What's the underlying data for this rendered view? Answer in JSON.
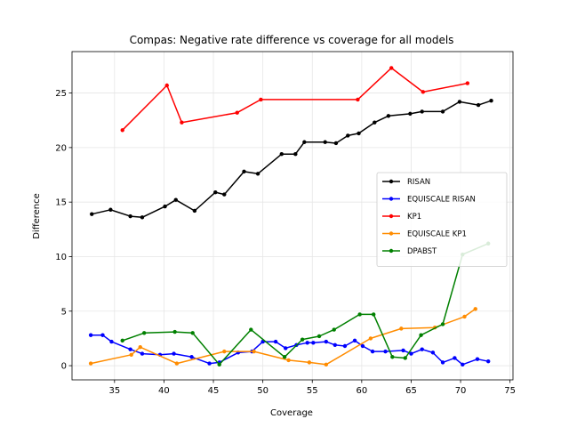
{
  "chart_data": {
    "type": "line",
    "title": "Compas: Negative rate difference vs coverage for all models",
    "xlabel": "Coverage",
    "ylabel": "Difference",
    "xlim": [
      30.7,
      75.3
    ],
    "ylim": [
      -1.3,
      28.8
    ],
    "xticks": [
      35,
      40,
      45,
      50,
      55,
      60,
      65,
      70,
      75
    ],
    "yticks": [
      0,
      5,
      10,
      15,
      20,
      25
    ],
    "grid": true,
    "legend_position": "center-right",
    "series": [
      {
        "name": "RISAN",
        "color": "#000000",
        "x": [
          32.7,
          34.6,
          36.6,
          37.8,
          40.1,
          41.2,
          43.1,
          45.2,
          46.1,
          48.1,
          49.5,
          51.9,
          53.3,
          54.2,
          56.3,
          57.4,
          58.6,
          59.7,
          61.3,
          62.7,
          64.9,
          66.1,
          68.2,
          69.9,
          71.8,
          73.1
        ],
        "y": [
          13.9,
          14.3,
          13.7,
          13.6,
          14.6,
          15.2,
          14.2,
          15.9,
          15.7,
          17.8,
          17.6,
          19.4,
          19.4,
          20.5,
          20.5,
          20.4,
          21.1,
          21.3,
          22.3,
          22.9,
          23.1,
          23.3,
          23.3,
          24.2,
          23.9,
          24.3
        ]
      },
      {
        "name": "EQUISCALE RISAN",
        "color": "#0000ff",
        "x": [
          32.6,
          33.8,
          34.7,
          36.6,
          37.8,
          39.6,
          41.0,
          42.8,
          44.6,
          45.6,
          47.5,
          48.9,
          50.0,
          51.3,
          52.3,
          53.4,
          54.5,
          55.1,
          56.4,
          57.3,
          58.3,
          59.3,
          60.1,
          61.1,
          62.4,
          64.2,
          65.0,
          66.1,
          67.2,
          68.2,
          69.4,
          70.2,
          71.7,
          72.8
        ],
        "y": [
          2.8,
          2.8,
          2.2,
          1.5,
          1.1,
          1.0,
          1.1,
          0.8,
          0.2,
          0.3,
          1.2,
          1.3,
          2.2,
          2.2,
          1.6,
          1.9,
          2.1,
          2.1,
          2.2,
          1.9,
          1.8,
          2.3,
          1.8,
          1.3,
          1.3,
          1.4,
          1.1,
          1.5,
          1.2,
          0.3,
          0.7,
          0.1,
          0.6,
          0.4
        ]
      },
      {
        "name": "KP1",
        "color": "#ff0000",
        "x": [
          35.8,
          40.3,
          41.8,
          47.4,
          49.8,
          59.6,
          63.0,
          66.2,
          70.7
        ],
        "y": [
          21.6,
          25.7,
          22.3,
          23.2,
          24.4,
          24.4,
          27.3,
          25.1,
          25.9
        ]
      },
      {
        "name": "EQUISCALE KP1",
        "color": "#ff8c00",
        "x": [
          32.6,
          36.7,
          37.6,
          41.3,
          46.1,
          49.1,
          52.6,
          54.7,
          56.4,
          60.9,
          64.0,
          67.4,
          70.4,
          71.5
        ],
        "y": [
          0.2,
          1.0,
          1.7,
          0.2,
          1.3,
          1.3,
          0.5,
          0.3,
          0.1,
          2.5,
          3.4,
          3.5,
          4.5,
          5.2
        ]
      },
      {
        "name": "DPABST",
        "color": "#008000",
        "x": [
          35.8,
          38.0,
          41.1,
          42.9,
          45.6,
          48.8,
          52.2,
          54.0,
          55.7,
          57.2,
          59.8,
          61.2,
          63.1,
          64.4,
          66.0,
          68.2,
          70.2,
          72.8
        ],
        "y": [
          2.3,
          3.0,
          3.1,
          3.0,
          0.1,
          3.3,
          0.8,
          2.4,
          2.7,
          3.3,
          4.7,
          4.7,
          0.8,
          0.7,
          2.8,
          3.8,
          10.2,
          11.2
        ]
      }
    ]
  }
}
